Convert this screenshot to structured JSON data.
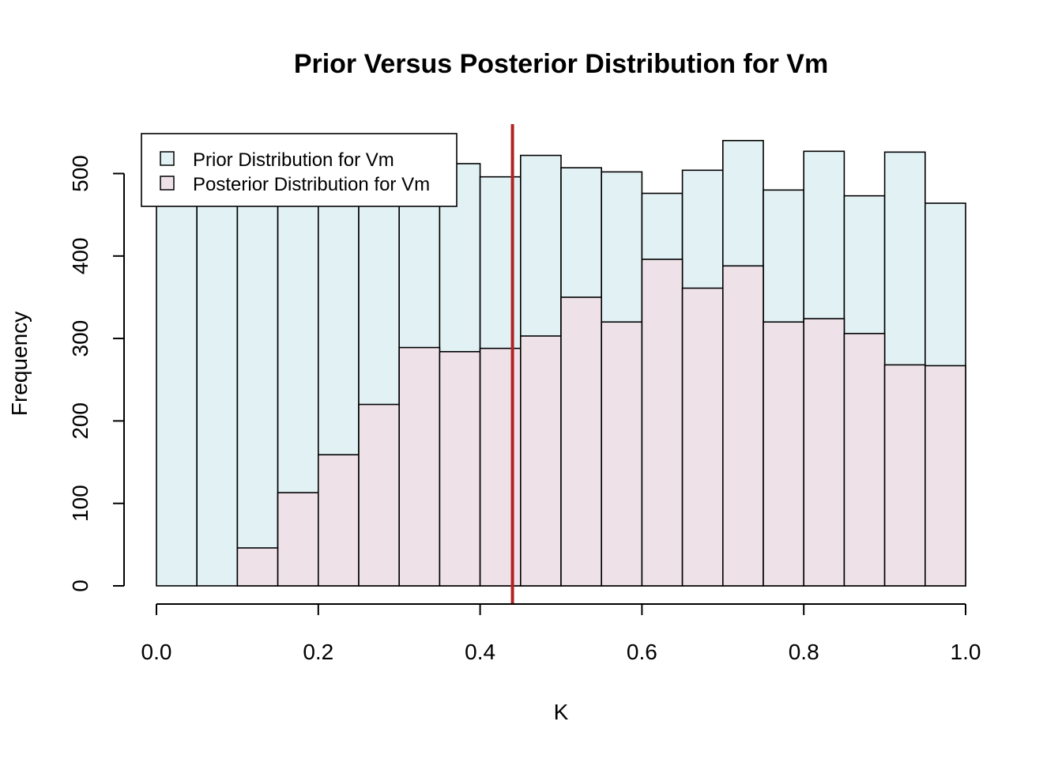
{
  "chart_data": {
    "type": "bar",
    "title": "Prior Versus Posterior Distribution for Vm",
    "xlabel": "K",
    "ylabel": "Frequency",
    "xlim": [
      0.0,
      1.0
    ],
    "ylim": [
      0,
      560
    ],
    "x_ticks": [
      "0.0",
      "0.2",
      "0.4",
      "0.6",
      "0.8",
      "1.0"
    ],
    "y_ticks": [
      "0",
      "100",
      "200",
      "300",
      "400",
      "500"
    ],
    "bin_edges": [
      0.0,
      0.05,
      0.1,
      0.15,
      0.2,
      0.25,
      0.3,
      0.35,
      0.4,
      0.45,
      0.5,
      0.55,
      0.6,
      0.65,
      0.7,
      0.75,
      0.8,
      0.85,
      0.9,
      0.95,
      1.0
    ],
    "series": [
      {
        "name": "Prior Distribution for Vm",
        "color": "#E2F1F4",
        "values": [
          500,
          500,
          500,
          500,
          500,
          505,
          510,
          512,
          496,
          522,
          507,
          502,
          476,
          504,
          540,
          480,
          527,
          473,
          526,
          464
        ]
      },
      {
        "name": "Posterior Distribution for Vm",
        "color": "#EEE2E8",
        "values": [
          0,
          0,
          46,
          113,
          159,
          220,
          289,
          284,
          288,
          303,
          350,
          320,
          396,
          361,
          388,
          320,
          324,
          306,
          268,
          267
        ]
      }
    ],
    "reference_line": {
      "x": 0.44,
      "color": "#B22222"
    },
    "legend_position": "top-left",
    "grid": false
  }
}
